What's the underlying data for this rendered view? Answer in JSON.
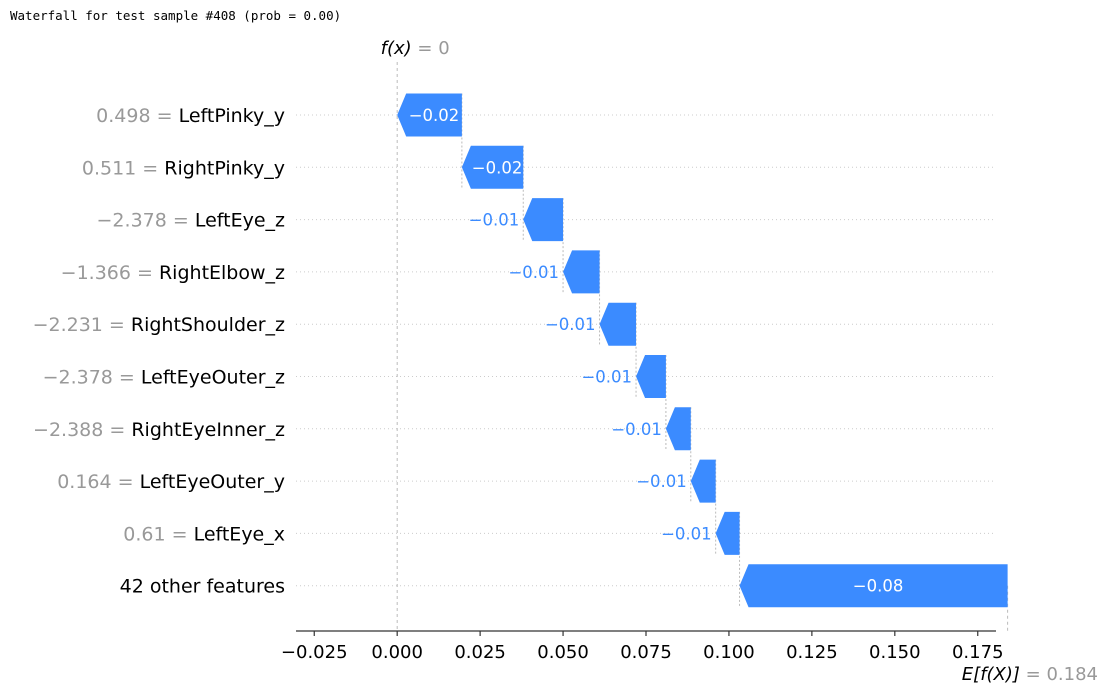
{
  "header": {
    "title": "Waterfall for test sample #408 (prob = 0.00)"
  },
  "chart_data": {
    "type": "waterfall",
    "fx": {
      "label_prefix": "f(x)",
      "label_value": "0",
      "value": 0
    },
    "base": {
      "label_prefix": "E[f(X)]",
      "label_value": "0.184",
      "value": 0.184
    },
    "features": [
      {
        "feature_value": "0.498",
        "name": "LeftPinky_y",
        "contribution": -0.0195,
        "label": "−0.02"
      },
      {
        "feature_value": "0.511",
        "name": "RightPinky_y",
        "contribution": -0.0185,
        "label": "−0.02"
      },
      {
        "feature_value": "−2.378",
        "name": "LeftEye_z",
        "contribution": -0.012,
        "label": "−0.01"
      },
      {
        "feature_value": "−1.366",
        "name": "RightElbow_z",
        "contribution": -0.011,
        "label": "−0.01"
      },
      {
        "feature_value": "−2.231",
        "name": "RightShoulder_z",
        "contribution": -0.011,
        "label": "−0.01"
      },
      {
        "feature_value": "−2.378",
        "name": "LeftEyeOuter_z",
        "contribution": -0.009,
        "label": "−0.01"
      },
      {
        "feature_value": "−2.388",
        "name": "RightEyeInner_z",
        "contribution": -0.0075,
        "label": "−0.01"
      },
      {
        "feature_value": "0.164",
        "name": "LeftEyeOuter_y",
        "contribution": -0.0075,
        "label": "−0.01"
      },
      {
        "feature_value": "0.61",
        "name": "LeftEye_x",
        "contribution": -0.0072,
        "label": "−0.01"
      },
      {
        "feature_value": "",
        "name": "42 other features",
        "contribution": -0.0808,
        "label": "−0.08"
      }
    ],
    "x_ticks": [
      {
        "value": -0.025,
        "label": "−0.025"
      },
      {
        "value": 0.0,
        "label": "0.000"
      },
      {
        "value": 0.025,
        "label": "0.025"
      },
      {
        "value": 0.05,
        "label": "0.050"
      },
      {
        "value": 0.075,
        "label": "0.075"
      },
      {
        "value": 0.1,
        "label": "0.100"
      },
      {
        "value": 0.125,
        "label": "0.125"
      },
      {
        "value": 0.15,
        "label": "0.150"
      },
      {
        "value": 0.175,
        "label": "0.175"
      }
    ],
    "xlim": [
      -0.0305,
      0.1805
    ],
    "colors": {
      "negative": "#3b8bff",
      "positive": "#ff0051"
    },
    "grid": "dotted horizontal per row"
  }
}
